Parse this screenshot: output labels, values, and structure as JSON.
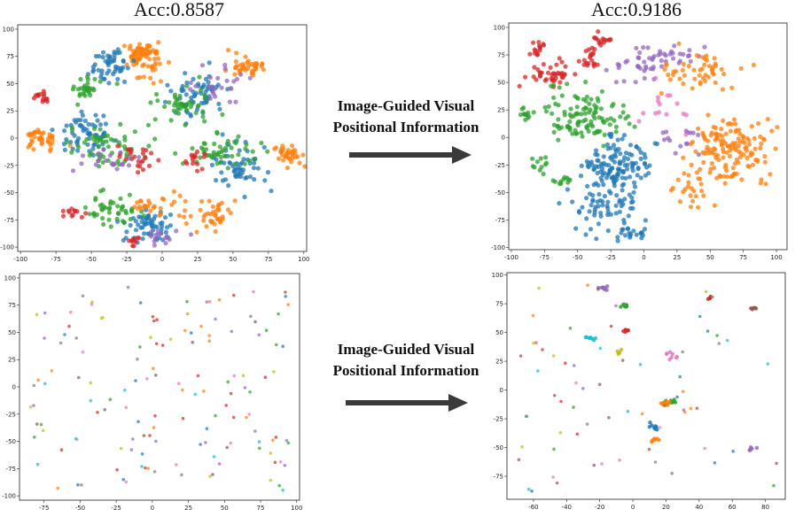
{
  "titles": {
    "left": "Acc:0.8587",
    "right": "Acc:0.9186"
  },
  "arrows": [
    {
      "line1": "Image-Guided Visual",
      "line2": "Positional Information"
    },
    {
      "line1": "Image-Guided Visual",
      "line2": "Positional Information"
    }
  ],
  "colors": {
    "blue": "#1f77b4",
    "orange": "#ff7f0e",
    "green": "#2ca02c",
    "red": "#d62728",
    "purple": "#9467bd",
    "brown": "#8c564b",
    "pink": "#e377c2",
    "gray": "#7f7f7f",
    "olive": "#bcbd22",
    "cyan": "#17becf"
  },
  "chart_data": [
    {
      "id": "tl",
      "type": "scatter",
      "title": "",
      "xlabel": "",
      "ylabel": "",
      "xlim": [
        -102,
        102
      ],
      "ylim": [
        -104,
        104
      ],
      "xticks": [
        -100,
        -75,
        -50,
        -25,
        0,
        25,
        50,
        75,
        100
      ],
      "yticks": [
        -100,
        -75,
        -50,
        -25,
        0,
        25,
        50,
        75,
        100
      ],
      "clusters": [
        {
          "c": "orange",
          "x": -15,
          "y": 78,
          "sx": 6,
          "sy": 6,
          "n": 60
        },
        {
          "c": "blue",
          "x": -35,
          "y": 65,
          "sx": 8,
          "sy": 8,
          "n": 50
        },
        {
          "c": "green",
          "x": -52,
          "y": 45,
          "sx": 5,
          "sy": 5,
          "n": 30
        },
        {
          "c": "red",
          "x": -85,
          "y": 38,
          "sx": 3,
          "sy": 3,
          "n": 15
        },
        {
          "c": "orange",
          "x": -10,
          "y": 60,
          "sx": 5,
          "sy": 6,
          "n": 20
        },
        {
          "c": "blue",
          "x": 25,
          "y": 40,
          "sx": 10,
          "sy": 10,
          "n": 60
        },
        {
          "c": "green",
          "x": 15,
          "y": 30,
          "sx": 10,
          "sy": 8,
          "n": 45
        },
        {
          "c": "orange",
          "x": 60,
          "y": 65,
          "sx": 6,
          "sy": 5,
          "n": 40
        },
        {
          "c": "purple",
          "x": 40,
          "y": 50,
          "sx": 12,
          "sy": 12,
          "n": 25
        },
        {
          "c": "orange",
          "x": -85,
          "y": 0,
          "sx": 6,
          "sy": 6,
          "n": 40
        },
        {
          "c": "blue",
          "x": -52,
          "y": 5,
          "sx": 10,
          "sy": 10,
          "n": 60
        },
        {
          "c": "green",
          "x": -40,
          "y": -5,
          "sx": 12,
          "sy": 10,
          "n": 55
        },
        {
          "c": "red",
          "x": -15,
          "y": -15,
          "sx": 6,
          "sy": 6,
          "n": 25
        },
        {
          "c": "purple",
          "x": -40,
          "y": -20,
          "sx": 10,
          "sy": 6,
          "n": 20
        },
        {
          "c": "orange",
          "x": 90,
          "y": -15,
          "sx": 5,
          "sy": 5,
          "n": 35
        },
        {
          "c": "blue",
          "x": 55,
          "y": -30,
          "sx": 10,
          "sy": 10,
          "n": 55
        },
        {
          "c": "green",
          "x": 40,
          "y": -10,
          "sx": 12,
          "sy": 8,
          "n": 50
        },
        {
          "c": "red",
          "x": 25,
          "y": -20,
          "sx": 5,
          "sy": 4,
          "n": 15
        },
        {
          "c": "blue",
          "x": -10,
          "y": -80,
          "sx": 10,
          "sy": 8,
          "n": 60
        },
        {
          "c": "green",
          "x": -35,
          "y": -65,
          "sx": 10,
          "sy": 8,
          "n": 45
        },
        {
          "c": "orange",
          "x": 35,
          "y": -70,
          "sx": 8,
          "sy": 6,
          "n": 40
        },
        {
          "c": "orange",
          "x": -5,
          "y": -60,
          "sx": 8,
          "sy": 6,
          "n": 25
        },
        {
          "c": "red",
          "x": -65,
          "y": -70,
          "sx": 4,
          "sy": 3,
          "n": 12
        },
        {
          "c": "purple",
          "x": 0,
          "y": -90,
          "sx": 6,
          "sy": 4,
          "n": 15
        },
        {
          "c": "red",
          "x": -20,
          "y": -95,
          "sx": 3,
          "sy": 3,
          "n": 10
        }
      ]
    },
    {
      "id": "tr",
      "type": "scatter",
      "title": "",
      "xlabel": "",
      "ylabel": "",
      "xlim": [
        -102,
        108
      ],
      "ylim": [
        -102,
        104
      ],
      "xticks": [
        -100,
        -75,
        -50,
        -25,
        0,
        25,
        50,
        75,
        100
      ],
      "yticks": [
        -100,
        -75,
        -50,
        -25,
        0,
        25,
        50,
        75,
        100
      ],
      "clusters": [
        {
          "c": "red",
          "x": -80,
          "y": 80,
          "sx": 3,
          "sy": 3,
          "n": 15
        },
        {
          "c": "red",
          "x": -70,
          "y": 58,
          "sx": 8,
          "sy": 5,
          "n": 40
        },
        {
          "c": "red",
          "x": -42,
          "y": 70,
          "sx": 5,
          "sy": 5,
          "n": 20
        },
        {
          "c": "red",
          "x": -30,
          "y": 88,
          "sx": 4,
          "sy": 3,
          "n": 15
        },
        {
          "c": "purple",
          "x": -5,
          "y": 65,
          "sx": 10,
          "sy": 8,
          "n": 30
        },
        {
          "c": "purple",
          "x": 20,
          "y": 75,
          "sx": 10,
          "sy": 5,
          "n": 25
        },
        {
          "c": "green",
          "x": -45,
          "y": 20,
          "sx": 15,
          "sy": 12,
          "n": 110
        },
        {
          "c": "green",
          "x": -90,
          "y": 20,
          "sx": 3,
          "sy": 3,
          "n": 12
        },
        {
          "c": "green",
          "x": -80,
          "y": -25,
          "sx": 3,
          "sy": 3,
          "n": 10
        },
        {
          "c": "green",
          "x": -60,
          "y": -40,
          "sx": 5,
          "sy": 3,
          "n": 12
        },
        {
          "c": "blue",
          "x": -20,
          "y": -25,
          "sx": 14,
          "sy": 14,
          "n": 130
        },
        {
          "c": "blue",
          "x": -30,
          "y": -65,
          "sx": 12,
          "sy": 10,
          "n": 60
        },
        {
          "c": "blue",
          "x": -10,
          "y": -85,
          "sx": 6,
          "sy": 4,
          "n": 20
        },
        {
          "c": "orange",
          "x": 65,
          "y": -10,
          "sx": 15,
          "sy": 15,
          "n": 140
        },
        {
          "c": "orange",
          "x": 40,
          "y": 60,
          "sx": 15,
          "sy": 8,
          "n": 50
        },
        {
          "c": "orange",
          "x": 40,
          "y": -50,
          "sx": 10,
          "sy": 8,
          "n": 25
        },
        {
          "c": "purple",
          "x": 25,
          "y": 0,
          "sx": 8,
          "sy": 6,
          "n": 15
        },
        {
          "c": "pink",
          "x": 15,
          "y": 30,
          "sx": 10,
          "sy": 10,
          "n": 15
        }
      ]
    },
    {
      "id": "bl",
      "type": "scatter",
      "title": "",
      "xlabel": "",
      "ylabel": "",
      "xlim": [
        -92,
        102
      ],
      "ylim": [
        -104,
        104
      ],
      "xticks": [
        -75,
        -50,
        -25,
        0,
        25,
        50,
        75,
        100
      ],
      "yticks": [
        -100,
        -75,
        -50,
        -25,
        0,
        25,
        50,
        75,
        100
      ],
      "random": {
        "n": 140,
        "xr": [
          -85,
          95
        ],
        "yr": [
          -95,
          92
        ],
        "seed": 7
      }
    },
    {
      "id": "br",
      "type": "scatter",
      "title": "",
      "xlabel": "",
      "ylabel": "",
      "xlim": [
        -76,
        92
      ],
      "ylim": [
        -95,
        102
      ],
      "xticks": [
        -60,
        -40,
        -20,
        0,
        20,
        40,
        60,
        80
      ],
      "yticks": [
        -75,
        -50,
        -25,
        0,
        25,
        50,
        75,
        100
      ],
      "random": {
        "n": 70,
        "xr": [
          -72,
          88
        ],
        "yr": [
          -88,
          92
        ],
        "seed": 11
      },
      "clusters": [
        {
          "c": "purple",
          "x": -18,
          "y": 89,
          "sx": 1.5,
          "sy": 1,
          "n": 8
        },
        {
          "c": "green",
          "x": -5,
          "y": 73,
          "sx": 1.5,
          "sy": 1,
          "n": 8
        },
        {
          "c": "red",
          "x": -4,
          "y": 52,
          "sx": 1,
          "sy": 1,
          "n": 6
        },
        {
          "c": "red",
          "x": 46,
          "y": 80,
          "sx": 0.8,
          "sy": 0.8,
          "n": 5
        },
        {
          "c": "brown",
          "x": 73,
          "y": 71,
          "sx": 0.8,
          "sy": 0.6,
          "n": 5
        },
        {
          "c": "cyan",
          "x": -25,
          "y": 45,
          "sx": 2,
          "sy": 1.5,
          "n": 8
        },
        {
          "c": "olive",
          "x": -8,
          "y": 33,
          "sx": 1,
          "sy": 1,
          "n": 5
        },
        {
          "c": "green",
          "x": 22,
          "y": -10,
          "sx": 3,
          "sy": 1.5,
          "n": 12
        },
        {
          "c": "orange",
          "x": 18,
          "y": -12,
          "sx": 2,
          "sy": 1,
          "n": 8
        },
        {
          "c": "orange",
          "x": 13,
          "y": -44,
          "sx": 2,
          "sy": 0.8,
          "n": 8
        },
        {
          "c": "blue",
          "x": 12,
          "y": -33,
          "sx": 2,
          "sy": 2,
          "n": 8
        },
        {
          "c": "purple",
          "x": 72,
          "y": -51,
          "sx": 1,
          "sy": 0.8,
          "n": 5
        },
        {
          "c": "pink",
          "x": 22,
          "y": 32,
          "sx": 3,
          "sy": 2,
          "n": 8
        }
      ]
    }
  ]
}
